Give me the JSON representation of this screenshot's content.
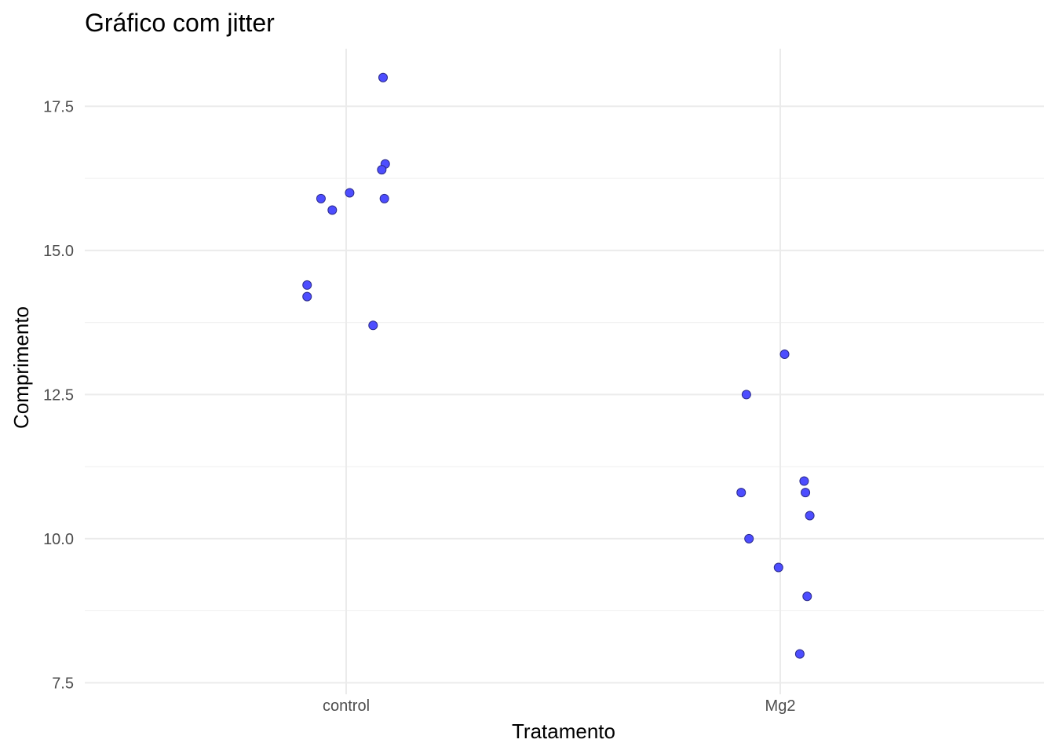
{
  "chart_data": {
    "type": "scatter",
    "title": "Gráfico com jitter",
    "xlabel": "Tratamento",
    "ylabel": "Comprimento",
    "categories": [
      "control",
      "Mg2"
    ],
    "ylim": [
      7.3,
      18.5
    ],
    "y_ticks": [
      "7.5",
      "10.0",
      "12.5",
      "15.0",
      "17.5"
    ],
    "grid": true,
    "point_color": "#4d4dff",
    "series": [
      {
        "category": "control",
        "points": [
          {
            "jitter": 0.085,
            "y": 18.0
          },
          {
            "jitter": 0.09,
            "y": 16.5
          },
          {
            "jitter": 0.082,
            "y": 16.4
          },
          {
            "jitter": 0.008,
            "y": 16.0
          },
          {
            "jitter": -0.058,
            "y": 15.9
          },
          {
            "jitter": 0.088,
            "y": 15.9
          },
          {
            "jitter": -0.032,
            "y": 15.7
          },
          {
            "jitter": -0.09,
            "y": 14.4
          },
          {
            "jitter": -0.09,
            "y": 14.2
          },
          {
            "jitter": 0.062,
            "y": 13.7
          }
        ]
      },
      {
        "category": "Mg2",
        "points": [
          {
            "jitter": 0.01,
            "y": 13.2
          },
          {
            "jitter": -0.078,
            "y": 12.5
          },
          {
            "jitter": 0.055,
            "y": 11.0
          },
          {
            "jitter": -0.09,
            "y": 10.8
          },
          {
            "jitter": 0.058,
            "y": 10.8
          },
          {
            "jitter": 0.068,
            "y": 10.4
          },
          {
            "jitter": -0.072,
            "y": 10.0
          },
          {
            "jitter": -0.004,
            "y": 9.5
          },
          {
            "jitter": 0.062,
            "y": 9.0
          },
          {
            "jitter": 0.045,
            "y": 8.0
          }
        ]
      }
    ]
  }
}
